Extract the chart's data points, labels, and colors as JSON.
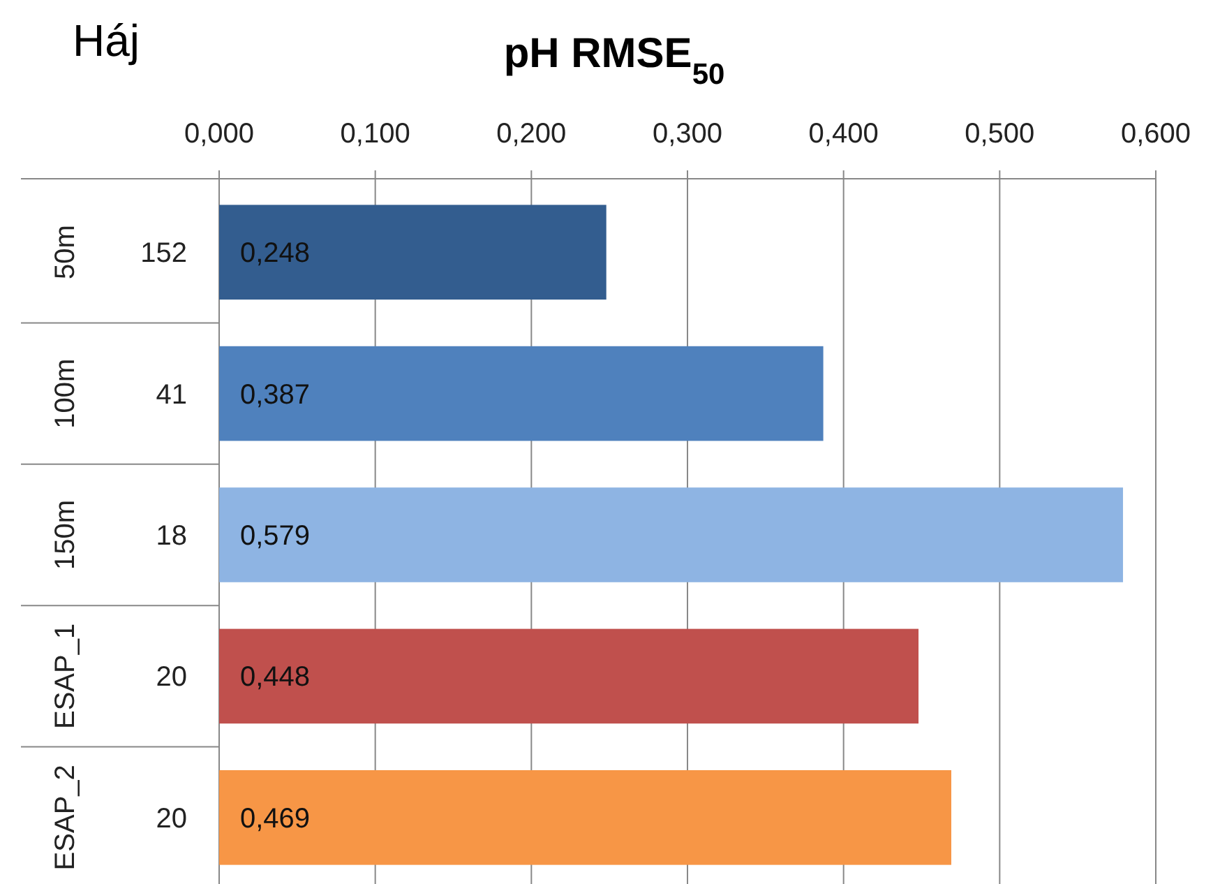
{
  "chart_data": {
    "type": "bar",
    "orientation": "horizontal",
    "title": "pH RMSE$_{50}$",
    "subtitle": "Háj",
    "categories": [
      "50m",
      "100m",
      "150m",
      "ESAP_1",
      "ESAP_2"
    ],
    "values": [
      0.248,
      0.387,
      0.579,
      0.448,
      0.469
    ],
    "value_labels": [
      "0,248",
      "0,387",
      "0,579",
      "0,448",
      "0,469"
    ],
    "colors": [
      "#335d8f",
      "#4f81bd",
      "#8eb4e3",
      "#c0504d",
      "#f79646"
    ],
    "xlim": [
      0,
      0.6
    ],
    "xticks": [
      {
        "value": 0,
        "label": "0,000"
      },
      {
        "value": 0.1,
        "label": "0,100"
      },
      {
        "value": 0.2,
        "label": "0,200"
      },
      {
        "value": 0.3,
        "label": "0,300"
      },
      {
        "value": 0.4,
        "label": "0,400"
      },
      {
        "value": 0.5,
        "label": "0,500"
      },
      {
        "value": 0.6,
        "label": "0,600"
      }
    ],
    "grid": "x",
    "annotations": [
      "152",
      "41",
      "18",
      "20",
      "20"
    ]
  }
}
